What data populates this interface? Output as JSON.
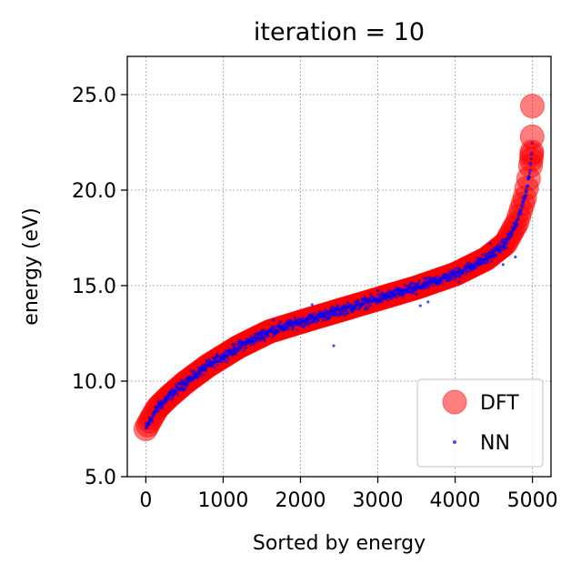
{
  "chart_data": {
    "type": "scatter",
    "title": "iteration = 10",
    "xlabel": "Sorted by energy",
    "ylabel": "energy (eV)",
    "xlim": [
      -240,
      5240
    ],
    "ylim": [
      5.0,
      27.0
    ],
    "x_ticks": [
      0,
      1000,
      2000,
      3000,
      4000,
      5000
    ],
    "x_tick_labels": [
      "0",
      "1000",
      "2000",
      "3000",
      "4000",
      "5000"
    ],
    "y_ticks": [
      5.0,
      10.0,
      15.0,
      20.0,
      25.0
    ],
    "y_tick_labels": [
      "5.0",
      "10.0",
      "15.0",
      "20.0",
      "25.0"
    ],
    "grid": true,
    "legend_position": "lower-right",
    "n_points": 5000,
    "series": [
      {
        "name": "DFT",
        "color": "#ff0000",
        "marker": "large circle",
        "curve_anchors": [
          [
            0,
            7.5
          ],
          [
            50,
            7.9
          ],
          [
            150,
            8.6
          ],
          [
            300,
            9.2
          ],
          [
            500,
            9.9
          ],
          [
            800,
            10.8
          ],
          [
            1200,
            11.8
          ],
          [
            1600,
            12.6
          ],
          [
            2000,
            13.1
          ],
          [
            2500,
            13.7
          ],
          [
            3000,
            14.3
          ],
          [
            3500,
            14.9
          ],
          [
            4000,
            15.6
          ],
          [
            4400,
            16.4
          ],
          [
            4650,
            17.2
          ],
          [
            4800,
            18.3
          ],
          [
            4900,
            19.6
          ],
          [
            4960,
            20.8
          ],
          [
            4985,
            21.6
          ],
          [
            4993,
            22.0
          ],
          [
            4996,
            22.8
          ],
          [
            4999,
            24.4
          ]
        ]
      },
      {
        "name": "NN",
        "color": "#0000ff",
        "marker": "small dot",
        "outliers": [
          [
            2430,
            11.85
          ],
          [
            3550,
            13.95
          ],
          [
            3650,
            14.15
          ],
          [
            3500,
            14.55
          ],
          [
            2150,
            14.0
          ],
          [
            2750,
            14.05
          ],
          [
            3000,
            14.75
          ],
          [
            4050,
            15.2
          ],
          [
            4620,
            16.1
          ],
          [
            4780,
            16.5
          ],
          [
            4450,
            17.2
          ],
          [
            1650,
            13.2
          ]
        ]
      }
    ]
  }
}
